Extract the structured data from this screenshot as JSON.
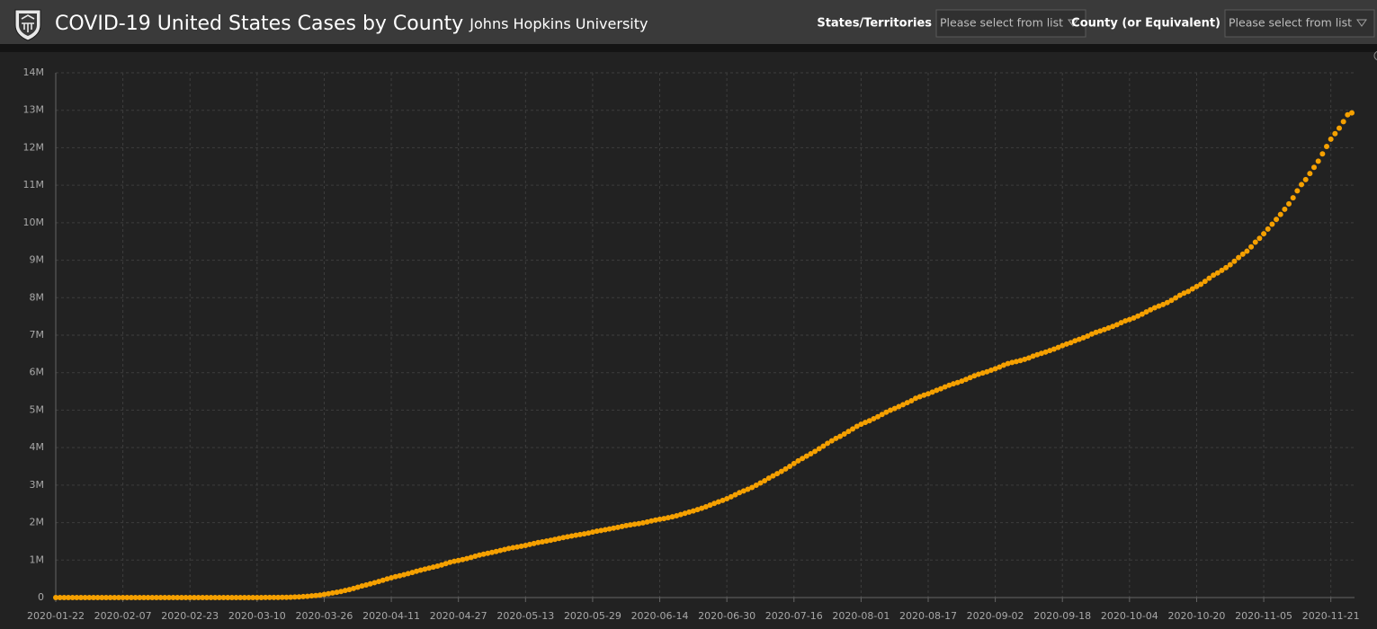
{
  "header": {
    "title": "COVID-19 United States Cases by County",
    "subtitle": "Johns Hopkins University"
  },
  "filters": [
    {
      "label": "States/Territories",
      "placeholder": "Please select from list"
    },
    {
      "label": "County (or Equivalent)",
      "placeholder": "Please select from list"
    }
  ],
  "chart_data": {
    "type": "scatter",
    "color": "#f5a000",
    "grid": true,
    "xlim": [
      "2020-01-22",
      "2020-11-26"
    ],
    "ylim": [
      0,
      14000000
    ],
    "xticks": [
      "2020-01-22",
      "2020-02-07",
      "2020-02-23",
      "2020-03-10",
      "2020-03-26",
      "2020-04-11",
      "2020-04-27",
      "2020-05-13",
      "2020-05-29",
      "2020-06-14",
      "2020-06-30",
      "2020-07-16",
      "2020-08-01",
      "2020-08-17",
      "2020-09-02",
      "2020-09-18",
      "2020-10-04",
      "2020-10-20",
      "2020-11-05",
      "2020-11-21"
    ],
    "yticks": [
      0,
      {
        "value": 1000000,
        "label": "1M"
      },
      {
        "value": 2000000,
        "label": "2M"
      },
      {
        "value": 3000000,
        "label": "3M"
      },
      {
        "value": 4000000,
        "label": "4M"
      },
      {
        "value": 5000000,
        "label": "5M"
      },
      {
        "value": 6000000,
        "label": "6M"
      },
      {
        "value": 7000000,
        "label": "7M"
      },
      {
        "value": 8000000,
        "label": "8M"
      },
      {
        "value": 9000000,
        "label": "9M"
      },
      {
        "value": 10000000,
        "label": "10M"
      },
      {
        "value": 11000000,
        "label": "11M"
      },
      {
        "value": 12000000,
        "label": "12M"
      },
      {
        "value": 13000000,
        "label": "13M"
      },
      {
        "value": 14000000,
        "label": "14M"
      }
    ],
    "x": [
      "2020-01-22",
      "2020-01-23",
      "2020-01-24",
      "2020-01-25",
      "2020-01-26",
      "2020-01-27",
      "2020-01-28",
      "2020-01-29",
      "2020-01-30",
      "2020-01-31",
      "2020-02-01",
      "2020-02-02",
      "2020-02-03",
      "2020-02-04",
      "2020-02-05",
      "2020-02-06",
      "2020-02-07",
      "2020-02-08",
      "2020-02-09",
      "2020-02-10",
      "2020-02-11",
      "2020-02-12",
      "2020-02-13",
      "2020-02-14",
      "2020-02-15",
      "2020-02-16",
      "2020-02-17",
      "2020-02-18",
      "2020-02-19",
      "2020-02-20",
      "2020-02-21",
      "2020-02-22",
      "2020-02-23",
      "2020-02-24",
      "2020-02-25",
      "2020-02-26",
      "2020-02-27",
      "2020-02-28",
      "2020-02-29",
      "2020-03-01",
      "2020-03-02",
      "2020-03-03",
      "2020-03-04",
      "2020-03-05",
      "2020-03-06",
      "2020-03-07",
      "2020-03-08",
      "2020-03-09",
      "2020-03-10",
      "2020-03-11",
      "2020-03-12",
      "2020-03-13",
      "2020-03-14",
      "2020-03-15",
      "2020-03-16",
      "2020-03-17",
      "2020-03-18",
      "2020-03-19",
      "2020-03-20",
      "2020-03-21",
      "2020-03-22",
      "2020-03-23",
      "2020-03-24",
      "2020-03-25",
      "2020-03-26",
      "2020-03-27",
      "2020-03-28",
      "2020-03-29",
      "2020-03-30",
      "2020-03-31",
      "2020-04-01",
      "2020-04-02",
      "2020-04-03",
      "2020-04-04",
      "2020-04-05",
      "2020-04-06",
      "2020-04-07",
      "2020-04-08",
      "2020-04-09",
      "2020-04-10",
      "2020-04-11",
      "2020-04-12",
      "2020-04-13",
      "2020-04-14",
      "2020-04-15",
      "2020-04-16",
      "2020-04-17",
      "2020-04-18",
      "2020-04-19",
      "2020-04-20",
      "2020-04-21",
      "2020-04-22",
      "2020-04-23",
      "2020-04-24",
      "2020-04-25",
      "2020-04-26",
      "2020-04-27",
      "2020-04-28",
      "2020-04-29",
      "2020-04-30",
      "2020-05-01",
      "2020-05-02",
      "2020-05-03",
      "2020-05-04",
      "2020-05-05",
      "2020-05-06",
      "2020-05-07",
      "2020-05-08",
      "2020-05-09",
      "2020-05-10",
      "2020-05-11",
      "2020-05-12",
      "2020-05-13",
      "2020-05-14",
      "2020-05-15",
      "2020-05-16",
      "2020-05-17",
      "2020-05-18",
      "2020-05-19",
      "2020-05-20",
      "2020-05-21",
      "2020-05-22",
      "2020-05-23",
      "2020-05-24",
      "2020-05-25",
      "2020-05-26",
      "2020-05-27",
      "2020-05-28",
      "2020-05-29",
      "2020-05-30",
      "2020-05-31",
      "2020-06-01",
      "2020-06-02",
      "2020-06-03",
      "2020-06-04",
      "2020-06-05",
      "2020-06-06",
      "2020-06-07",
      "2020-06-08",
      "2020-06-09",
      "2020-06-10",
      "2020-06-11",
      "2020-06-12",
      "2020-06-13",
      "2020-06-14",
      "2020-06-15",
      "2020-06-16",
      "2020-06-17",
      "2020-06-18",
      "2020-06-19",
      "2020-06-20",
      "2020-06-21",
      "2020-06-22",
      "2020-06-23",
      "2020-06-24",
      "2020-06-25",
      "2020-06-26",
      "2020-06-27",
      "2020-06-28",
      "2020-06-29",
      "2020-06-30",
      "2020-07-01",
      "2020-07-02",
      "2020-07-03",
      "2020-07-04",
      "2020-07-05",
      "2020-07-06",
      "2020-07-07",
      "2020-07-08",
      "2020-07-09",
      "2020-07-10",
      "2020-07-11",
      "2020-07-12",
      "2020-07-13",
      "2020-07-14",
      "2020-07-15",
      "2020-07-16",
      "2020-07-17",
      "2020-07-18",
      "2020-07-19",
      "2020-07-20",
      "2020-07-21",
      "2020-07-22",
      "2020-07-23",
      "2020-07-24",
      "2020-07-25",
      "2020-07-26",
      "2020-07-27",
      "2020-07-28",
      "2020-07-29",
      "2020-07-30",
      "2020-07-31",
      "2020-08-01",
      "2020-08-02",
      "2020-08-03",
      "2020-08-04",
      "2020-08-05",
      "2020-08-06",
      "2020-08-07",
      "2020-08-08",
      "2020-08-09",
      "2020-08-10",
      "2020-08-11",
      "2020-08-12",
      "2020-08-13",
      "2020-08-14",
      "2020-08-15",
      "2020-08-16",
      "2020-08-17",
      "2020-08-18",
      "2020-08-19",
      "2020-08-20",
      "2020-08-21",
      "2020-08-22",
      "2020-08-23",
      "2020-08-24",
      "2020-08-25",
      "2020-08-26",
      "2020-08-27",
      "2020-08-28",
      "2020-08-29",
      "2020-08-30",
      "2020-08-31",
      "2020-09-01",
      "2020-09-02",
      "2020-09-03",
      "2020-09-04",
      "2020-09-05",
      "2020-09-06",
      "2020-09-07",
      "2020-09-08",
      "2020-09-09",
      "2020-09-10",
      "2020-09-11",
      "2020-09-12",
      "2020-09-13",
      "2020-09-14",
      "2020-09-15",
      "2020-09-16",
      "2020-09-17",
      "2020-09-18",
      "2020-09-19",
      "2020-09-20",
      "2020-09-21",
      "2020-09-22",
      "2020-09-23",
      "2020-09-24",
      "2020-09-25",
      "2020-09-26",
      "2020-09-27",
      "2020-09-28",
      "2020-09-29",
      "2020-09-30",
      "2020-10-01",
      "2020-10-02",
      "2020-10-03",
      "2020-10-04",
      "2020-10-05",
      "2020-10-06",
      "2020-10-07",
      "2020-10-08",
      "2020-10-09",
      "2020-10-10",
      "2020-10-11",
      "2020-10-12",
      "2020-10-13",
      "2020-10-14",
      "2020-10-15",
      "2020-10-16",
      "2020-10-17",
      "2020-10-18",
      "2020-10-19",
      "2020-10-20",
      "2020-10-21",
      "2020-10-22",
      "2020-10-23",
      "2020-10-24",
      "2020-10-25",
      "2020-10-26",
      "2020-10-27",
      "2020-10-28",
      "2020-10-29",
      "2020-10-30",
      "2020-10-31",
      "2020-11-01",
      "2020-11-02",
      "2020-11-03",
      "2020-11-04",
      "2020-11-05",
      "2020-11-06",
      "2020-11-07",
      "2020-11-08",
      "2020-11-09",
      "2020-11-10",
      "2020-11-11",
      "2020-11-12",
      "2020-11-13",
      "2020-11-14",
      "2020-11-15",
      "2020-11-16",
      "2020-11-17",
      "2020-11-18",
      "2020-11-19",
      "2020-11-20",
      "2020-11-21",
      "2020-11-22",
      "2020-11-23",
      "2020-11-24",
      "2020-11-25",
      "2020-11-26"
    ],
    "values": [
      1,
      1,
      2,
      2,
      5,
      5,
      5,
      6,
      6,
      8,
      8,
      11,
      11,
      11,
      12,
      12,
      12,
      12,
      12,
      12,
      13,
      13,
      14,
      14,
      14,
      14,
      14,
      14,
      14,
      14,
      14,
      14,
      14,
      53,
      53,
      59,
      60,
      62,
      70,
      76,
      101,
      122,
      153,
      221,
      278,
      417,
      537,
      605,
      959,
      1281,
      1663,
      2179,
      2726,
      3499,
      4632,
      6421,
      7786,
      13680,
      19101,
      25493,
      33276,
      43847,
      53740,
      65778,
      83836,
      101657,
      121465,
      140909,
      161831,
      188172,
      213000,
      244000,
      275000,
      309000,
      337000,
      366000,
      397000,
      429000,
      462000,
      496000,
      528000,
      557000,
      581000,
      609000,
      637000,
      667000,
      700000,
      732000,
      759000,
      785000,
      811000,
      840000,
      870000,
      905000,
      940000,
      967000,
      990000,
      1014000,
      1040000,
      1069000,
      1103000,
      1133000,
      1158000,
      1180000,
      1204000,
      1228000,
      1257000,
      1283000,
      1309000,
      1329000,
      1347000,
      1369000,
      1390000,
      1417000,
      1442000,
      1467000,
      1486000,
      1508000,
      1528000,
      1552000,
      1577000,
      1601000,
      1622000,
      1643000,
      1662000,
      1681000,
      1699000,
      1721000,
      1746000,
      1770000,
      1790000,
      1811000,
      1831000,
      1851000,
      1872000,
      1897000,
      1920000,
      1938000,
      1956000,
      1973000,
      1994000,
      2017000,
      2043000,
      2067000,
      2089000,
      2107000,
      2131000,
      2154000,
      2182000,
      2214000,
      2246000,
      2279000,
      2311000,
      2346000,
      2382000,
      2422000,
      2467000,
      2510000,
      2553000,
      2593000,
      2636000,
      2687000,
      2742000,
      2799000,
      2844000,
      2888000,
      2936000,
      2997000,
      3056000,
      3115000,
      3184000,
      3246000,
      3306000,
      3365000,
      3432000,
      3500000,
      3576000,
      3647000,
      3711000,
      3773000,
      3836000,
      3900000,
      3970000,
      4039000,
      4113000,
      4179000,
      4245000,
      4300000,
      4363000,
      4431000,
      4498000,
      4566000,
      4624000,
      4671000,
      4718000,
      4772000,
      4825000,
      4884000,
      4943000,
      4997000,
      5044000,
      5094000,
      5146000,
      5199000,
      5251000,
      5316000,
      5358000,
      5401000,
      5436000,
      5481000,
      5528000,
      5572000,
      5620000,
      5665000,
      5701000,
      5736000,
      5775000,
      5820000,
      5866000,
      5914000,
      5957000,
      5991000,
      6023000,
      6065000,
      6105000,
      6148000,
      6200000,
      6241000,
      6272000,
      6297000,
      6322000,
      6356000,
      6393000,
      6441000,
      6478000,
      6514000,
      6549000,
      6588000,
      6628000,
      6673000,
      6721000,
      6764000,
      6799000,
      6851000,
      6890000,
      6930000,
      6975000,
      7030000,
      7076000,
      7110000,
      7150000,
      7193000,
      7233000,
      7278000,
      7333000,
      7382000,
      7417000,
      7458000,
      7509000,
      7560000,
      7619000,
      7676000,
      7730000,
      7776000,
      7818000,
      7869000,
      7929000,
      7995000,
      8064000,
      8120000,
      8167000,
      8234000,
      8297000,
      8358000,
      8434000,
      8518000,
      8601000,
      8661000,
      8728000,
      8801000,
      8880000,
      8971000,
      9070000,
      9160000,
      9240000,
      9355000,
      9480000,
      9582000,
      9706000,
      9833000,
      9962000,
      10090000,
      10220000,
      10360000,
      10503000,
      10666000,
      10850000,
      11017000,
      11151000,
      11313000,
      11476000,
      11641000,
      11837000,
      12034000,
      12229000,
      12376000,
      12524000,
      12697000,
      12880000,
      12930000
    ]
  }
}
